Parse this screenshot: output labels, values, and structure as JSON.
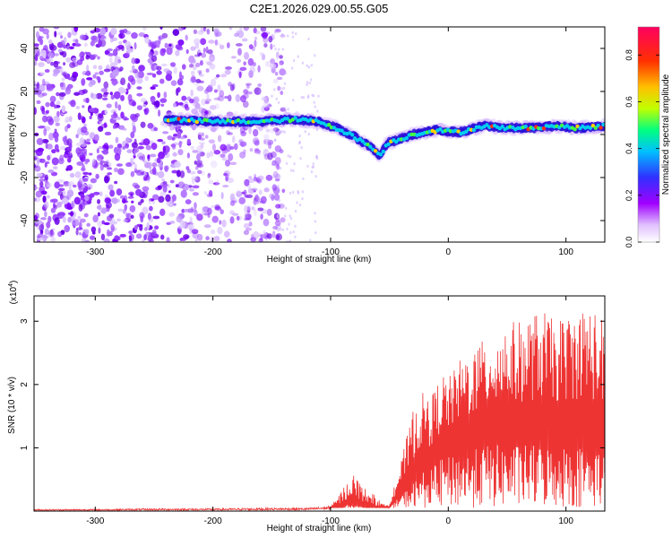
{
  "title": "C2E1.2026.029.00.55.G05",
  "chart_data": [
    {
      "type": "heatmap",
      "title": "C2E1.2026.029.00.55.G05",
      "xlabel": "Height of straight line (km)",
      "ylabel": "Frequency (Hz)",
      "xlim": [
        -352,
        133
      ],
      "ylim": [
        -50,
        50
      ],
      "x_ticks": [
        -300,
        -200,
        -100,
        0,
        100
      ],
      "x_tick_labels": [
        "-300",
        "-200",
        "-100",
        "0",
        "100"
      ],
      "y_ticks": [
        -40,
        -20,
        0,
        20,
        40
      ],
      "y_tick_labels": [
        "-40",
        "-20",
        "0",
        "20",
        "40"
      ],
      "ridge": {
        "x": [
          -240,
          -200,
          -160,
          -130,
          -110,
          -95,
          -80,
          -65,
          -58,
          -52,
          -45,
          -30,
          -10,
          10,
          30,
          50,
          70,
          90,
          110,
          133
        ],
        "y": [
          7,
          6,
          6,
          7,
          6,
          3,
          -1,
          -6,
          -10,
          -4,
          -3,
          0,
          2,
          1,
          4,
          3,
          3,
          4,
          3,
          4
        ]
      },
      "noise_x_range": [
        -352,
        -140
      ],
      "colorbar": {
        "label": "Normalized spectral amplitude",
        "range": [
          0.0,
          0.92
        ],
        "ticks": [
          0.0,
          0.2,
          0.4,
          0.6,
          0.8
        ],
        "tick_labels": [
          "0.0",
          "0.2",
          "0.4",
          "0.6",
          "0.8"
        ],
        "colors": [
          "#ffffff",
          "#a000ff",
          "#3030ff",
          "#00c0ff",
          "#00ff80",
          "#c0ff00",
          "#ffc000",
          "#ff3000",
          "#ff0060"
        ]
      }
    },
    {
      "type": "line",
      "xlabel": "Height of straight line (km)",
      "ylabel": "SNR (10 * v/v)",
      "y_scale_label": "(x10^4)",
      "y_scale_base": "(x10",
      "y_scale_exp": "4",
      "y_scale_close": ")",
      "xlim": [
        -352,
        133
      ],
      "ylim": [
        0,
        3.4
      ],
      "x_ticks": [
        -300,
        -200,
        -100,
        0,
        100
      ],
      "x_tick_labels": [
        "-300",
        "-200",
        "-100",
        "0",
        "100"
      ],
      "y_ticks": [
        1,
        2,
        3
      ],
      "y_tick_labels": [
        "1",
        "2",
        "3"
      ],
      "color": "#ee3333",
      "series": [
        {
          "name": "SNR",
          "x": [
            -352,
            -300,
            -250,
            -200,
            -150,
            -120,
            -100,
            -95,
            -90,
            -85,
            -80,
            -75,
            -70,
            -65,
            -60,
            -55,
            -50,
            -45,
            -40,
            -35,
            -30,
            -25,
            -20,
            -15,
            -10,
            -5,
            0,
            10,
            20,
            30,
            40,
            50,
            60,
            70,
            80,
            90,
            100,
            110,
            120,
            133
          ],
          "y_envelope": [
            0.03,
            0.03,
            0.04,
            0.04,
            0.05,
            0.05,
            0.08,
            0.2,
            0.35,
            0.5,
            0.6,
            0.45,
            0.35,
            0.3,
            0.2,
            0.1,
            0.2,
            0.5,
            0.8,
            1.2,
            1.6,
            1.8,
            1.9,
            1.8,
            2.0,
            2.2,
            2.1,
            2.4,
            2.6,
            2.7,
            2.9,
            3.0,
            3.0,
            3.1,
            3.2,
            3.0,
            3.1,
            3.2,
            3.3,
            3.0
          ],
          "y_floor": [
            0.0,
            0.0,
            0.0,
            0.0,
            0.0,
            0.0,
            0.0,
            0.0,
            0.0,
            0.05,
            0.05,
            0.02,
            0.0,
            0.0,
            0.0,
            0.0,
            0.0,
            0.1,
            0.2,
            0.3,
            0.4,
            0.5,
            0.6,
            0.6,
            0.7,
            0.8,
            0.8,
            0.9,
            0.9,
            1.0,
            1.0,
            1.0,
            1.0,
            1.0,
            1.0,
            1.0,
            1.0,
            1.0,
            0.9,
            1.0
          ]
        }
      ]
    }
  ]
}
